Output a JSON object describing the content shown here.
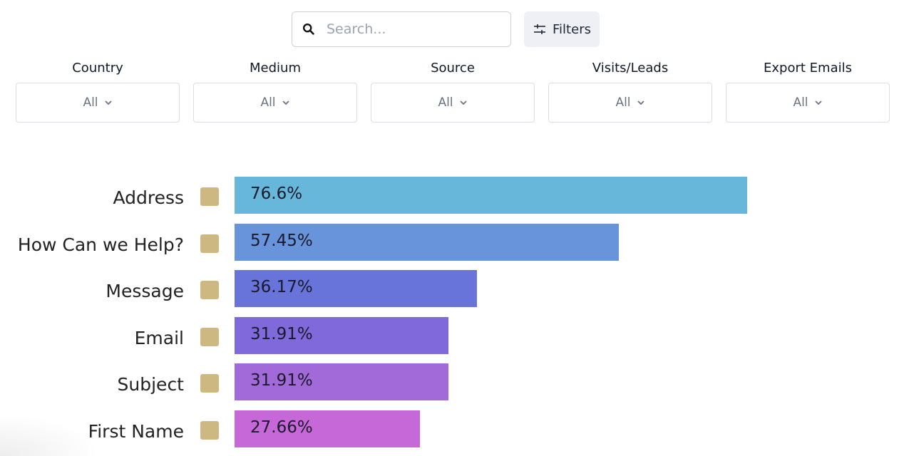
{
  "search": {
    "placeholder": "Search...",
    "value": ""
  },
  "filters_button": {
    "label": "Filters"
  },
  "filter_dropdowns": [
    {
      "label": "Country",
      "value": "All"
    },
    {
      "label": "Medium",
      "value": "All"
    },
    {
      "label": "Source",
      "value": "All"
    },
    {
      "label": "Visits/Leads",
      "value": "All"
    },
    {
      "label": "Export Emails",
      "value": "All"
    }
  ],
  "colors": {
    "swatch": "#cdb882",
    "bars": [
      "#66b7d9",
      "#6794da",
      "#6874da",
      "#8069da",
      "#a269d9",
      "#c668d7"
    ]
  },
  "chart_data": {
    "type": "bar",
    "orientation": "horizontal",
    "categories": [
      "Address",
      "How Can we Help?",
      "Message",
      "Email",
      "Subject",
      "First Name"
    ],
    "values": [
      76.6,
      57.45,
      36.17,
      31.91,
      31.91,
      27.66
    ],
    "value_labels": [
      "76.6%",
      "57.45%",
      "36.17%",
      "31.91%",
      "31.91%",
      "27.66%"
    ],
    "unit": "%",
    "xlim": [
      0,
      100
    ],
    "grid": false
  }
}
